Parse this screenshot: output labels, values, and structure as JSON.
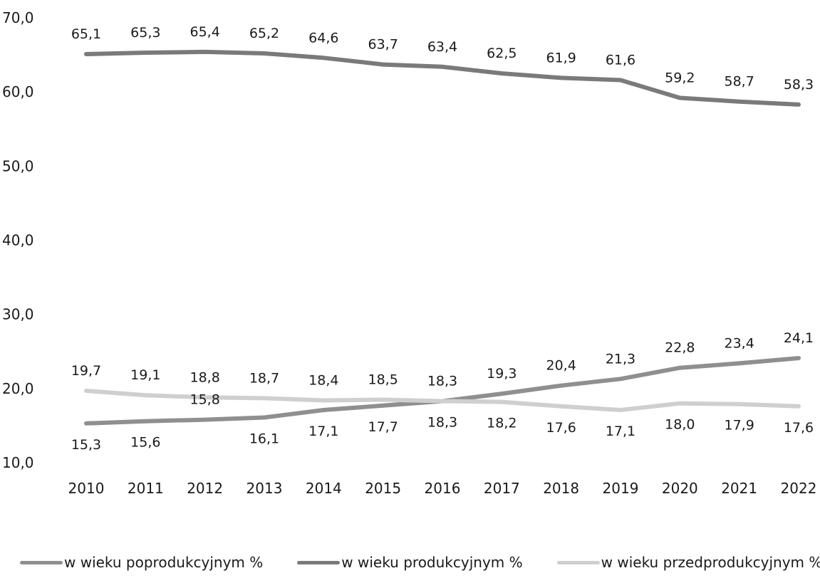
{
  "chart_data": {
    "type": "line",
    "title": "",
    "xlabel": "",
    "ylabel": "",
    "x": [
      "2010",
      "2011",
      "2012",
      "2013",
      "2014",
      "2015",
      "2016",
      "2017",
      "2018",
      "2019",
      "2020",
      "2021",
      "2022"
    ],
    "ylim": [
      10,
      70
    ],
    "yticks": [
      "10,0",
      "20,0",
      "30,0",
      "40,0",
      "50,0",
      "60,0",
      "70,0"
    ],
    "grid": false,
    "legend_position": "bottom",
    "series": [
      {
        "name": "w wieku poprodukcyjnym %",
        "color": "#8f8f8f",
        "values": [
          15.3,
          15.6,
          15.8,
          16.1,
          17.1,
          17.7,
          18.3,
          19.3,
          20.4,
          21.3,
          22.8,
          23.4,
          24.1
        ],
        "labels": [
          "15,3",
          "15,6",
          "15,8",
          "16,1",
          "17,1",
          "17,7",
          "18,3",
          "19,3",
          "20,4",
          "21,3",
          "22,8",
          "23,4",
          "24,1"
        ],
        "label_side": [
          "below",
          "below",
          "above",
          "below",
          "below",
          "below",
          "below",
          "above",
          "above",
          "above",
          "above",
          "above",
          "above"
        ]
      },
      {
        "name": "w wieku produkcyjnym %",
        "color": "#7a7a7a",
        "values": [
          65.1,
          65.3,
          65.4,
          65.2,
          64.6,
          63.7,
          63.4,
          62.5,
          61.9,
          61.6,
          59.2,
          58.7,
          58.3
        ],
        "labels": [
          "65,1",
          "65,3",
          "65,4",
          "65,2",
          "64,6",
          "63,7",
          "63,4",
          "62,5",
          "61,9",
          "61,6",
          "59,2",
          "58,7",
          "58,3"
        ],
        "label_side": [
          "above",
          "above",
          "above",
          "above",
          "above",
          "above",
          "above",
          "above",
          "above",
          "above",
          "above",
          "above",
          "above"
        ]
      },
      {
        "name": "w wieku przedprodukcyjnym %",
        "color": "#cfcfcf",
        "values": [
          19.7,
          19.1,
          18.8,
          18.7,
          18.4,
          18.5,
          18.3,
          18.2,
          17.6,
          17.1,
          18.0,
          17.9,
          17.6
        ],
        "labels": [
          "19,7",
          "19,1",
          "18,8",
          "18,7",
          "18,4",
          "18,5",
          "18,3",
          "18,2",
          "17,6",
          "17,1",
          "18,0",
          "17,9",
          "17,6"
        ],
        "label_side": [
          "above",
          "above",
          "above",
          "above",
          "above",
          "above",
          "above",
          "below",
          "below",
          "below",
          "below",
          "below",
          "below"
        ]
      }
    ]
  }
}
